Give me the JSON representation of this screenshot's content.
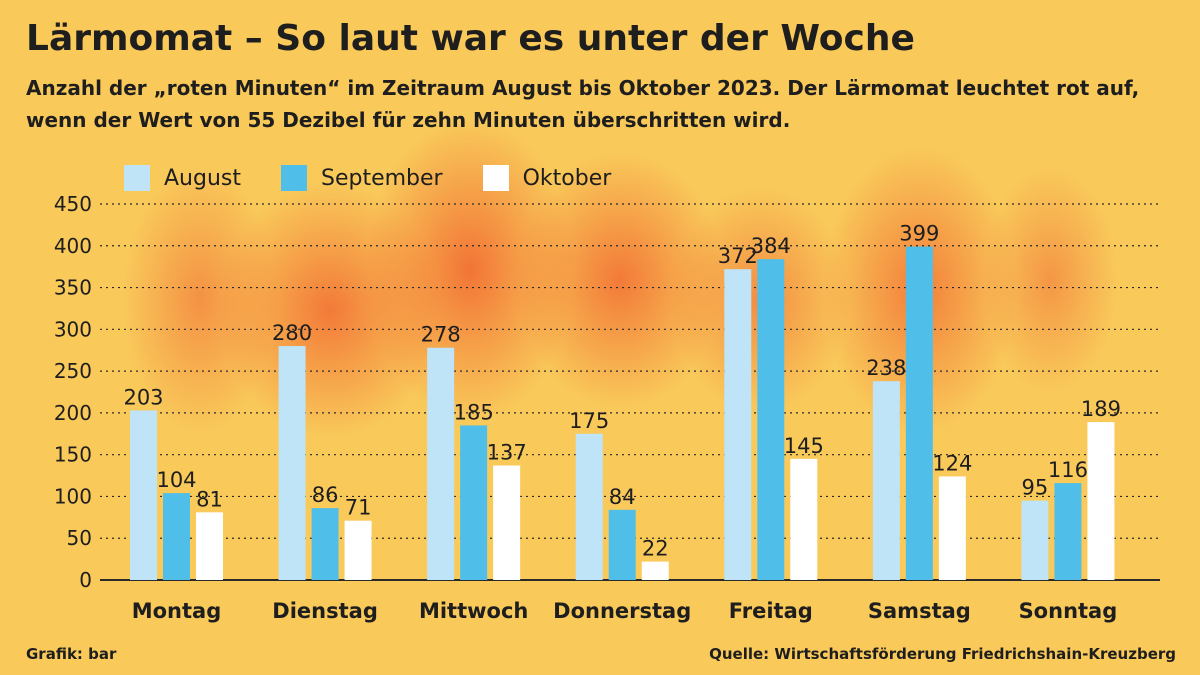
{
  "title": "Lärmomat – So laut war es unter der Woche",
  "subtitle": "Anzahl der „roten Minuten“ im Zeitraum August bis Oktober 2023. Der Lärmomat leuchtet rot auf, wenn der Wert von 55 Dezibel für zehn Minuten überschritten wird.",
  "footer": {
    "credit": "Grafik: bar",
    "source": "Quelle: Wirtschaftsförderung Friedrichshain-Kreuzberg"
  },
  "chart_data": {
    "type": "bar",
    "categories": [
      "Montag",
      "Dienstag",
      "Mittwoch",
      "Donnerstag",
      "Freitag",
      "Samstag",
      "Sonntag"
    ],
    "series": [
      {
        "name": "August",
        "color": "#bfe3f7",
        "values": [
          203,
          280,
          278,
          175,
          372,
          238,
          95
        ]
      },
      {
        "name": "September",
        "color": "#4fbfe9",
        "values": [
          104,
          86,
          185,
          84,
          384,
          399,
          116
        ]
      },
      {
        "name": "Oktober",
        "color": "#ffffff",
        "values": [
          81,
          71,
          137,
          22,
          145,
          124,
          189
        ]
      }
    ],
    "yticks": [
      0,
      50,
      100,
      150,
      200,
      250,
      300,
      350,
      400,
      450
    ],
    "ylim": [
      0,
      450
    ],
    "grid": true,
    "legend_position": "top-left"
  }
}
